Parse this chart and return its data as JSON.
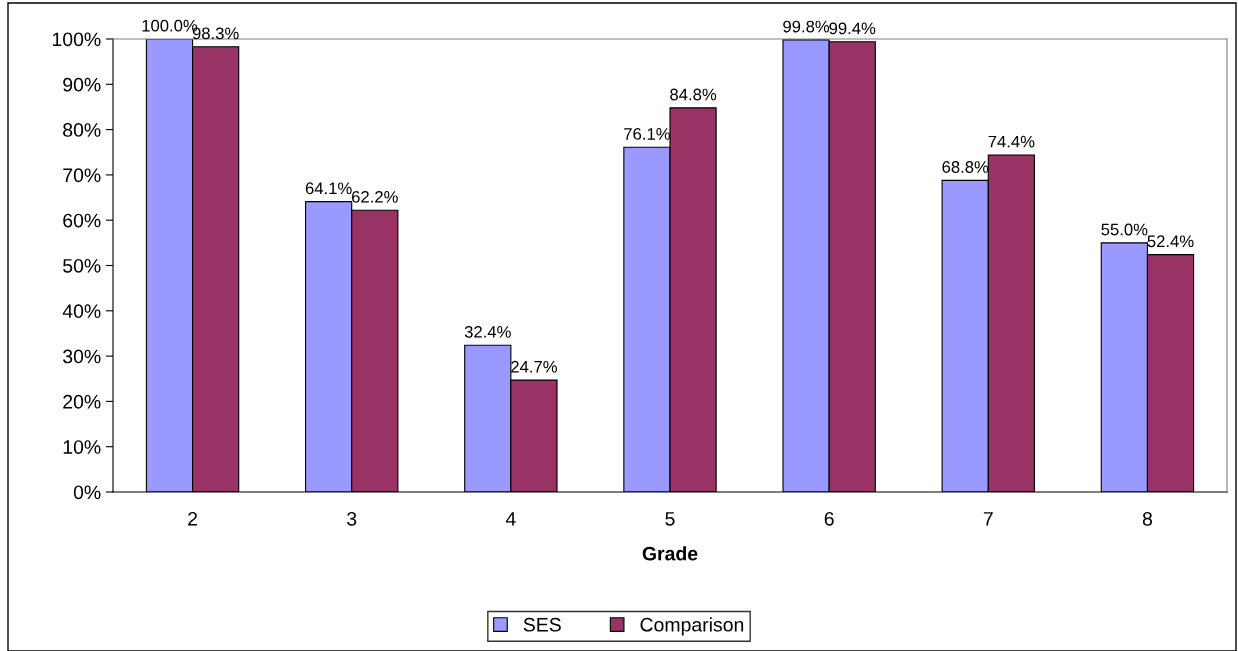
{
  "chart_data": {
    "type": "bar",
    "xlabel": "Grade",
    "categories": [
      "2",
      "3",
      "4",
      "5",
      "6",
      "7",
      "8"
    ],
    "series": [
      {
        "name": "SES",
        "color": "#9999ff",
        "values": [
          100.0,
          64.1,
          32.4,
          76.1,
          99.8,
          68.8,
          55.0
        ],
        "value_labels": [
          "100.0%",
          "64.1%",
          "32.4%",
          "76.1%",
          "99.8%",
          "68.8%",
          "55.0%"
        ]
      },
      {
        "name": "Comparison",
        "color": "#993366",
        "values": [
          98.3,
          62.2,
          24.7,
          84.8,
          99.4,
          74.4,
          52.4
        ],
        "value_labels": [
          "98.3%",
          "62.2%",
          "24.7%",
          "84.8%",
          "99.4%",
          "74.4%",
          "52.4%"
        ]
      }
    ],
    "ylim": [
      0,
      100
    ],
    "yticks": [
      {
        "value": 0,
        "label": "0%"
      },
      {
        "value": 10,
        "label": "10%"
      },
      {
        "value": 20,
        "label": "20%"
      },
      {
        "value": 30,
        "label": "30%"
      },
      {
        "value": 40,
        "label": "40%"
      },
      {
        "value": 50,
        "label": "50%"
      },
      {
        "value": 60,
        "label": "60%"
      },
      {
        "value": 70,
        "label": "70%"
      },
      {
        "value": 80,
        "label": "80%"
      },
      {
        "value": 90,
        "label": "90%"
      },
      {
        "value": 100,
        "label": "100%"
      }
    ],
    "grid": false,
    "legend": "bottom"
  }
}
